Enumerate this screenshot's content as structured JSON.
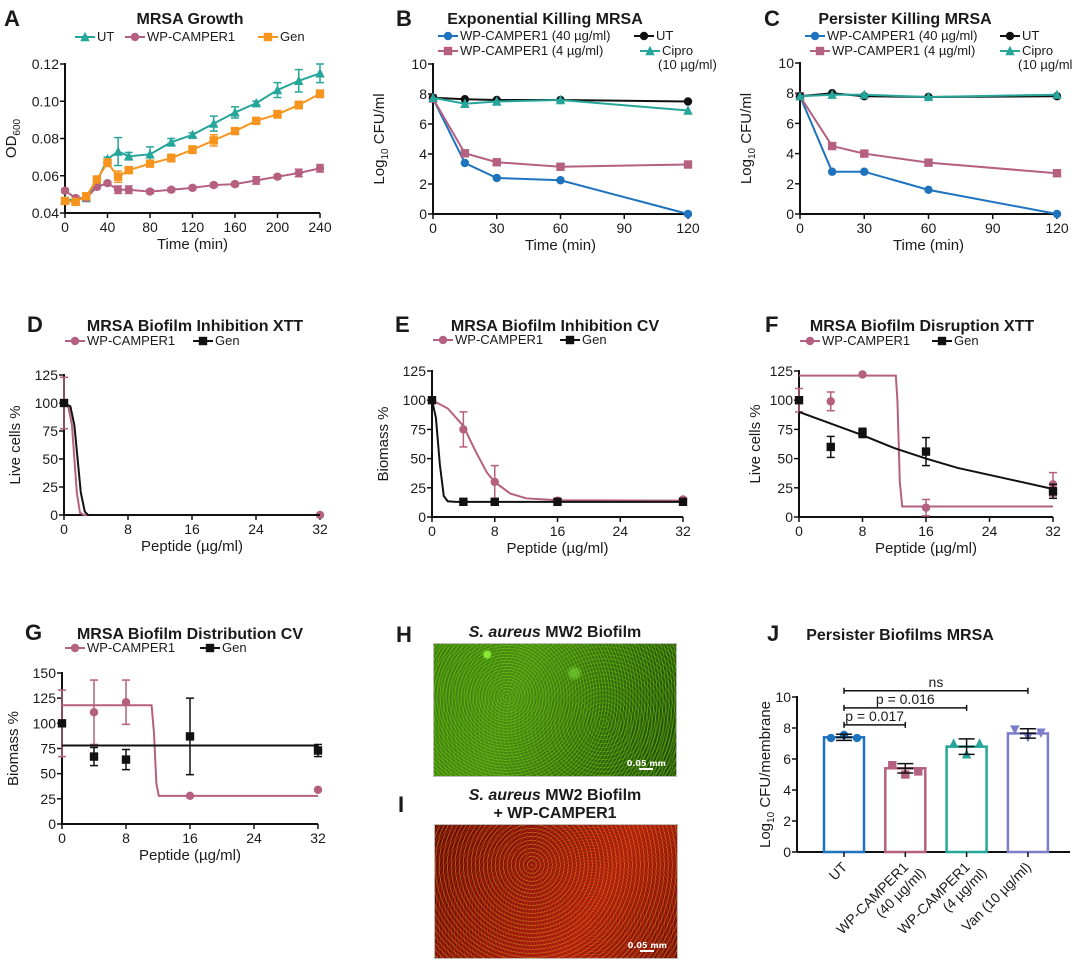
{
  "colors": {
    "teal": "#26a69a",
    "mauve": "#b5607f",
    "orange": "#f7941d",
    "blue": "#1e73be",
    "black": "#111111",
    "violet": "#7b7fc9"
  },
  "chart_data": [
    {
      "panel": "A",
      "type": "line",
      "title": "MRSA Growth",
      "xlabel": "Time (min)",
      "ylabel": {
        "main": "OD",
        "sub": "600",
        "rest": ""
      },
      "xlim": [
        0,
        240
      ],
      "ylim": [
        0.04,
        0.12
      ],
      "xticks": [
        "0",
        "40",
        "80",
        "120",
        "160",
        "200",
        "240"
      ],
      "yticks": [
        "0.04",
        "0.06",
        "0.08",
        "0.10",
        "0.12"
      ],
      "legend": "top",
      "x": [
        0,
        10,
        20,
        30,
        40,
        50,
        60,
        80,
        100,
        120,
        140,
        160,
        180,
        200,
        220,
        240
      ],
      "series": [
        {
          "name": [
            "UT"
          ],
          "color": "#26a69a",
          "marker": "triangle",
          "y": [
            0.047,
            0.047,
            0.048,
            0.057,
            0.069,
            0.073,
            0.0705,
            0.0715,
            0.078,
            0.082,
            0.088,
            0.094,
            0.099,
            0.106,
            0.111,
            0.115
          ],
          "err": [
            0.001,
            0.001,
            0.001,
            0.001,
            0.001,
            0.0075,
            0.002,
            0.004,
            0.002,
            0.001,
            0.004,
            0.003,
            0.001,
            0.004,
            0.006,
            0.005
          ]
        },
        {
          "name": [
            "WP-CAMPER1"
          ],
          "color": "#b5607f",
          "marker": "circle",
          "y": [
            0.052,
            0.048,
            0.048,
            0.054,
            0.056,
            0.0525,
            0.0525,
            0.0515,
            0.0525,
            0.0535,
            0.055,
            0.0555,
            0.0575,
            0.0595,
            0.0615,
            0.064
          ],
          "err": [
            0.001,
            0.001,
            0.001,
            0.001,
            0.001,
            0.002,
            0.002,
            0.001,
            0.001,
            0.001,
            0.001,
            0.001,
            0.002,
            0.001,
            0.002,
            0.002
          ]
        },
        {
          "name": [
            "Gen"
          ],
          "color": "#f7941d",
          "marker": "square",
          "y": [
            0.0465,
            0.046,
            0.049,
            0.058,
            0.067,
            0.0595,
            0.063,
            0.0665,
            0.0695,
            0.074,
            0.079,
            0.084,
            0.0895,
            0.093,
            0.098,
            0.104
          ],
          "err": [
            0.001,
            0.001,
            0.001,
            0.001,
            0.002,
            0.003,
            0.001,
            0.001,
            0.002,
            0.002,
            0.003,
            0.001,
            0.001,
            0.002,
            0.002,
            0.002
          ]
        }
      ]
    },
    {
      "panel": "B",
      "type": "line",
      "title": "Exponential Killing MRSA",
      "xlabel": "Time (min)",
      "ylabel": {
        "main": "Log",
        "sub": "10",
        "rest": " CFU/ml"
      },
      "xlim": [
        0,
        120
      ],
      "ylim": [
        0,
        10
      ],
      "xticks": [
        "0",
        "30",
        "60",
        "90",
        "120"
      ],
      "yticks": [
        "0",
        "2",
        "4",
        "6",
        "8",
        "10"
      ],
      "legend": "top",
      "x": [
        0,
        15,
        30,
        60,
        120
      ],
      "series": [
        {
          "name": [
            "WP-CAMPER1 (40 µg/ml)"
          ],
          "color": "#1e73be",
          "marker": "circle",
          "y": [
            7.7,
            3.4,
            2.4,
            2.25,
            0
          ]
        },
        {
          "name": [
            "WP-CAMPER1 (4 µg/ml)"
          ],
          "color": "#b5607f",
          "marker": "square",
          "y": [
            7.7,
            4.05,
            3.45,
            3.15,
            3.3
          ]
        },
        {
          "name": [
            "UT"
          ],
          "color": "#111111",
          "marker": "circle",
          "y": [
            7.75,
            7.65,
            7.6,
            7.6,
            7.5
          ]
        },
        {
          "name": [
            "Cipro",
            "(10 µg/ml)"
          ],
          "color": "#26a69a",
          "marker": "triangle",
          "y": [
            7.75,
            7.35,
            7.5,
            7.6,
            6.9
          ]
        }
      ]
    },
    {
      "panel": "C",
      "type": "line",
      "title": "Persister Killing MRSA",
      "xlabel": "Time (min)",
      "ylabel": {
        "main": "Log",
        "sub": "10",
        "rest": " CFU/ml"
      },
      "xlim": [
        0,
        120
      ],
      "ylim": [
        0,
        10
      ],
      "xticks": [
        "0",
        "30",
        "60",
        "90",
        "120"
      ],
      "yticks": [
        "0",
        "2",
        "4",
        "6",
        "8",
        "10"
      ],
      "legend": "top",
      "x": [
        0,
        15,
        30,
        60,
        120
      ],
      "series": [
        {
          "name": [
            "WP-CAMPER1 (40 µg/ml)"
          ],
          "color": "#1e73be",
          "marker": "circle",
          "y": [
            7.8,
            2.8,
            2.8,
            1.6,
            0
          ]
        },
        {
          "name": [
            "WP-CAMPER1 (4 µg/ml)"
          ],
          "color": "#b5607f",
          "marker": "square",
          "y": [
            7.8,
            4.5,
            4.0,
            3.4,
            2.7
          ]
        },
        {
          "name": [
            "UT"
          ],
          "color": "#111111",
          "marker": "circle",
          "y": [
            7.8,
            8.0,
            7.8,
            7.75,
            7.8
          ]
        },
        {
          "name": [
            "Cipro",
            "(10 µg/ml"
          ],
          "color": "#26a69a",
          "marker": "triangle",
          "y": [
            7.8,
            7.9,
            7.9,
            7.75,
            7.9
          ]
        }
      ]
    },
    {
      "panel": "D",
      "type": "scatter",
      "title": "MRSA Biofilm Inhibition XTT",
      "xlabel": "Peptide (µg/ml)",
      "ylabel": {
        "main": "Live cells %",
        "sub": "",
        "rest": ""
      },
      "xlim": [
        0,
        32
      ],
      "ylim": [
        0,
        125
      ],
      "xticks": [
        "0",
        "8",
        "16",
        "24",
        "32"
      ],
      "yticks": [
        "0",
        "25",
        "50",
        "75",
        "100",
        "125"
      ],
      "legend": "top",
      "series": [
        {
          "name": [
            "WP-CAMPER1"
          ],
          "color": "#b5607f",
          "marker": "circle",
          "x": [
            0,
            32
          ],
          "y": [
            100,
            0
          ],
          "err": [
            23,
            0
          ],
          "curve": [
            [
              0,
              100
            ],
            [
              0.5,
              98
            ],
            [
              1,
              80
            ],
            [
              1.3,
              50
            ],
            [
              1.6,
              20
            ],
            [
              2,
              2
            ],
            [
              2.5,
              0
            ],
            [
              32,
              0
            ]
          ]
        },
        {
          "name": [
            "Gen"
          ],
          "color": "#111111",
          "marker": "square",
          "x": [
            0
          ],
          "y": [
            100
          ],
          "err": [
            0
          ],
          "curve": [
            [
              0,
              100
            ],
            [
              0.8,
              97
            ],
            [
              1.3,
              80
            ],
            [
              1.7,
              50
            ],
            [
              2.1,
              20
            ],
            [
              2.6,
              3
            ],
            [
              3,
              0
            ],
            [
              32,
              0
            ]
          ]
        }
      ]
    },
    {
      "panel": "E",
      "type": "scatter",
      "title": "MRSA Biofilm Inhibition CV",
      "xlabel": "Peptide (µg/ml)",
      "ylabel": {
        "main": "Biomass %",
        "sub": "",
        "rest": ""
      },
      "xlim": [
        0,
        32
      ],
      "ylim": [
        0,
        125
      ],
      "xticks": [
        "0",
        "8",
        "16",
        "24",
        "32"
      ],
      "yticks": [
        "0",
        "25",
        "50",
        "75",
        "100",
        "125"
      ],
      "legend": "top",
      "series": [
        {
          "name": [
            "WP-CAMPER1"
          ],
          "color": "#b5607f",
          "marker": "circle",
          "x": [
            0,
            4,
            8,
            16,
            32
          ],
          "y": [
            100,
            75,
            30,
            14,
            15
          ],
          "err": [
            0,
            15,
            14,
            0,
            0
          ],
          "curve": [
            [
              0,
              100
            ],
            [
              2,
              93
            ],
            [
              4,
              78
            ],
            [
              5.5,
              57
            ],
            [
              7,
              38
            ],
            [
              8,
              30
            ],
            [
              10,
              20
            ],
            [
              12,
              16
            ],
            [
              16,
              14.3
            ],
            [
              32,
              14
            ]
          ]
        },
        {
          "name": [
            "Gen"
          ],
          "color": "#111111",
          "marker": "square",
          "x": [
            0,
            4,
            8,
            16,
            32
          ],
          "y": [
            100,
            13,
            13,
            13,
            13
          ],
          "err": [
            0,
            0,
            0,
            0,
            0
          ],
          "curve": [
            [
              0,
              100
            ],
            [
              0.5,
              85
            ],
            [
              1,
              45
            ],
            [
              1.5,
              18
            ],
            [
              2,
              13.5
            ],
            [
              3,
              13
            ],
            [
              32,
              13
            ]
          ]
        }
      ]
    },
    {
      "panel": "F",
      "type": "scatter",
      "title": "MRSA Biofilm Disruption XTT",
      "xlabel": "Peptide (µg/ml)",
      "ylabel": {
        "main": "Live cells %",
        "sub": "",
        "rest": ""
      },
      "xlim": [
        0,
        32
      ],
      "ylim": [
        0,
        125
      ],
      "xticks": [
        "0",
        "8",
        "16",
        "24",
        "32"
      ],
      "yticks": [
        "0",
        "25",
        "50",
        "75",
        "100",
        "125"
      ],
      "legend": "top",
      "series": [
        {
          "name": [
            "WP-CAMPER1"
          ],
          "color": "#b5607f",
          "marker": "circle",
          "x": [
            0,
            4,
            8,
            16,
            32
          ],
          "y": [
            100,
            99,
            122,
            8,
            28
          ],
          "err": [
            10,
            8,
            0,
            7,
            10
          ],
          "curve": [
            [
              0,
              121
            ],
            [
              12.2,
              121
            ],
            [
              12.4,
              100
            ],
            [
              12.7,
              30
            ],
            [
              13,
              9
            ],
            [
              32,
              9
            ]
          ]
        },
        {
          "name": [
            "Gen"
          ],
          "color": "#111111",
          "marker": "square",
          "x": [
            0,
            4,
            8,
            16,
            32
          ],
          "y": [
            100,
            60,
            72,
            56,
            22
          ],
          "err": [
            0,
            9,
            4,
            12,
            6
          ],
          "curve": [
            [
              0,
              90
            ],
            [
              4,
              80
            ],
            [
              8,
              70
            ],
            [
              12,
              59
            ],
            [
              16,
              50
            ],
            [
              20,
              42
            ],
            [
              24,
              36
            ],
            [
              28,
              30
            ],
            [
              32,
              24
            ]
          ]
        }
      ]
    },
    {
      "panel": "G",
      "type": "scatter",
      "title": "MRSA Biofilm Distribution CV",
      "xlabel": "Peptide (µg/ml)",
      "ylabel": {
        "main": "Biomass %",
        "sub": "",
        "rest": ""
      },
      "xlim": [
        0,
        32
      ],
      "ylim": [
        0,
        150
      ],
      "xticks": [
        "0",
        "8",
        "16",
        "24",
        "32"
      ],
      "yticks": [
        "0",
        "25",
        "50",
        "75",
        "100",
        "125",
        "150"
      ],
      "legend": "top",
      "series": [
        {
          "name": [
            "WP-CAMPER1"
          ],
          "color": "#b5607f",
          "marker": "circle",
          "x": [
            0,
            4,
            8,
            16,
            32
          ],
          "y": [
            100,
            111,
            121,
            28,
            34
          ],
          "err": [
            33,
            32,
            22,
            0,
            0
          ],
          "curve": [
            [
              0,
              118
            ],
            [
              11.2,
              118
            ],
            [
              11.5,
              90
            ],
            [
              11.8,
              40
            ],
            [
              12.1,
              28
            ],
            [
              32,
              28
            ]
          ]
        },
        {
          "name": [
            "Gen"
          ],
          "color": "#111111",
          "marker": "square",
          "x": [
            0,
            4,
            8,
            16,
            32
          ],
          "y": [
            100,
            67,
            64,
            87,
            73
          ],
          "err": [
            0,
            9,
            10,
            38,
            6
          ],
          "curve": [
            [
              0,
              78
            ],
            [
              32,
              78
            ]
          ]
        }
      ]
    },
    {
      "panel": "J",
      "type": "bar",
      "title": "Persister Biofilms MRSA",
      "ylabel": {
        "main": "Log",
        "sub": "10",
        "rest": " CFU/membrane"
      },
      "ylim": [
        0,
        10
      ],
      "yticks": [
        "0",
        "2",
        "4",
        "6",
        "8",
        "10"
      ],
      "categories": [
        {
          "label_lines": [
            "UT"
          ],
          "value": 7.4,
          "err": 0.2,
          "points": [
            7.35,
            7.55,
            7.35
          ],
          "color": "#1e73be",
          "marker": "circle"
        },
        {
          "label_lines": [
            "WP-CAMPER1",
            "(40 µg/ml)"
          ],
          "value": 5.4,
          "err": 0.3,
          "points": [
            5.6,
            5.0,
            5.2
          ],
          "color": "#b5607f",
          "marker": "square"
        },
        {
          "label_lines": [
            "WP-CAMPER1",
            "(4 µg/ml)"
          ],
          "value": 6.8,
          "err": 0.5,
          "points": [
            7.0,
            6.3,
            7.0
          ],
          "color": "#26a69a",
          "marker": "triangle"
        },
        {
          "label_lines": [
            "Van (10 µg/ml)"
          ],
          "value": 7.65,
          "err": 0.3,
          "points": [
            7.9,
            7.4,
            7.7
          ],
          "color": "#7b7fc9",
          "marker": "triangle-down"
        }
      ],
      "significance": [
        {
          "from": 0,
          "to": 1,
          "label": "p = 0.017"
        },
        {
          "from": 0,
          "to": 2,
          "label": "p = 0.016"
        },
        {
          "from": 0,
          "to": 3,
          "label": "ns"
        }
      ]
    }
  ],
  "images": {
    "H": {
      "panel": "H",
      "title_italic": "S. aureus",
      "title_rest": " MW2 Biofilm",
      "scale": "0.05 mm"
    },
    "I": {
      "panel": "I",
      "title_italic": "S. aureus",
      "title_rest": " MW2 Biofilm",
      "title_line2": "+ WP-CAMPER1",
      "scale": "0.05 mm"
    }
  }
}
